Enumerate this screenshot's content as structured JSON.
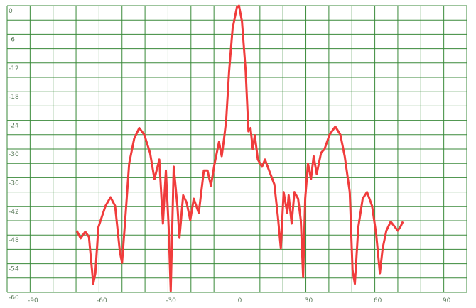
{
  "chart_data": {
    "type": "line",
    "x": [
      -69.7,
      -68,
      -66,
      -64.4,
      -62.5,
      -61.6,
      -60.3,
      -57.2,
      -55,
      -53,
      -50.9,
      -50,
      -48.4,
      -46.9,
      -44.7,
      -42.5,
      -40.3,
      -37.8,
      -35.9,
      -33.8,
      -32.2,
      -30.9,
      -29.7,
      -28.8,
      -27.5,
      -25.9,
      -25,
      -23.4,
      -21.9,
      -20.3,
      -18.8,
      -16.6,
      -14.4,
      -12.8,
      -11.3,
      -9.7,
      -7.8,
      -6.6,
      -5.6,
      -4.7,
      -3.4,
      -1.9,
      0,
      0.9,
      2.2,
      3.8,
      5,
      5.9,
      6.9,
      7.8,
      9.1,
      10.9,
      12.2,
      14,
      16.3,
      17.8,
      19.1,
      20.3,
      21.9,
      22.5,
      23.8,
      25,
      26.6,
      27.8,
      28.8,
      29.7,
      30.9,
      32.2,
      33.4,
      34.7,
      36.6,
      38.1,
      40.3,
      42.8,
      45,
      46.9,
      49.1,
      50.3,
      51.3,
      52.8,
      54.7,
      56.6,
      58.8,
      60.6,
      62.2,
      63.4,
      65,
      66.9,
      68.4,
      70,
      71.3,
      72.2
    ],
    "values": [
      -47.1,
      -48.7,
      -47.3,
      -48.4,
      -58.2,
      -56,
      -46.4,
      -41.9,
      -40.1,
      -41.9,
      -51.6,
      -53.8,
      -43.4,
      -33,
      -27.8,
      -25.6,
      -27,
      -30.8,
      -36.3,
      -32.2,
      -45.6,
      -34.5,
      -46.4,
      -59.7,
      -33.7,
      -41.9,
      -48.6,
      -39.7,
      -41.2,
      -44.9,
      -40.4,
      -43.4,
      -34.5,
      -34.5,
      -37.7,
      -33,
      -28.5,
      -31.5,
      -27.8,
      -24.1,
      -13.7,
      -4.8,
      -0.3,
      0,
      -3.3,
      -13.7,
      -26.3,
      -25.6,
      -30,
      -27.1,
      -32.2,
      -33.7,
      -32.2,
      -34.5,
      -37.4,
      -44.1,
      -50.8,
      -39,
      -43.4,
      -39.7,
      -45.6,
      -39,
      -40.4,
      -44.9,
      -56.8,
      -40.4,
      -33,
      -36.3,
      -31.5,
      -35.2,
      -30.8,
      -30,
      -27,
      -25.3,
      -27,
      -31.5,
      -39,
      -55.3,
      -58.2,
      -46.4,
      -40.4,
      -39,
      -41.9,
      -47.8,
      -56,
      -50.8,
      -47.1,
      -45.2,
      -46.1,
      -47.1,
      -46.1,
      -45.2
    ],
    "color": "#f03c3c",
    "xlim": [
      -100,
      100
    ],
    "xticks": [
      -90,
      -60,
      -30,
      0,
      30,
      60,
      90
    ],
    "xgrid": [
      -100,
      -90,
      -80,
      -70,
      -60,
      -50,
      -40,
      -30,
      -20,
      -10,
      0,
      10,
      20,
      30,
      40,
      50,
      60,
      70,
      80,
      90,
      100
    ],
    "ylim": [
      -60,
      0
    ],
    "yticks": [
      0,
      -6,
      -12,
      -18,
      -24,
      -30,
      -36,
      -42,
      -48,
      -54,
      -60
    ],
    "ygrid": [
      0,
      -3,
      -6,
      -9,
      -12,
      -15,
      -18,
      -21,
      -24,
      -27,
      -30,
      -33,
      -36,
      -39,
      -42,
      -45,
      -48,
      -51,
      -54,
      -57,
      -60
    ],
    "grid_color": "#3a8a3a"
  }
}
